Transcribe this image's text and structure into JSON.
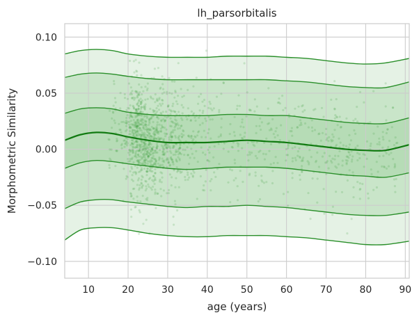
{
  "chart_data": {
    "type": "area",
    "title": "lh_parsorbitalis",
    "xlabel": "age (years)",
    "ylabel": "Morphometric Similarity",
    "xlim": [
      4,
      91
    ],
    "ylim": [
      -0.115,
      0.112
    ],
    "x_ticks": [
      10,
      20,
      30,
      40,
      50,
      60,
      70,
      80,
      90
    ],
    "x_tick_labels": [
      "10",
      "20",
      "30",
      "40",
      "50",
      "60",
      "70",
      "80",
      "90"
    ],
    "y_ticks": [
      0.1,
      0.05,
      0.0,
      -0.05,
      -0.1
    ],
    "y_tick_labels": [
      "0.10",
      "0.05",
      "0.00",
      "−0.05",
      "−0.10"
    ],
    "grid": true,
    "x": [
      4,
      8,
      12,
      16,
      20,
      25,
      30,
      35,
      40,
      45,
      50,
      55,
      60,
      65,
      70,
      75,
      80,
      85,
      91
    ],
    "series": [
      {
        "values": [
          0.085,
          0.088,
          0.089,
          0.088,
          0.085,
          0.083,
          0.082,
          0.082,
          0.082,
          0.083,
          0.083,
          0.083,
          0.082,
          0.081,
          0.079,
          0.077,
          0.076,
          0.077,
          0.081
        ]
      },
      {
        "values": [
          0.064,
          0.067,
          0.068,
          0.067,
          0.065,
          0.063,
          0.062,
          0.062,
          0.062,
          0.062,
          0.062,
          0.062,
          0.061,
          0.06,
          0.058,
          0.056,
          0.055,
          0.055,
          0.06
        ]
      },
      {
        "values": [
          0.032,
          0.036,
          0.037,
          0.036,
          0.033,
          0.031,
          0.03,
          0.03,
          0.03,
          0.031,
          0.031,
          0.03,
          0.03,
          0.028,
          0.026,
          0.024,
          0.023,
          0.023,
          0.028
        ]
      },
      {
        "values": [
          0.008,
          0.013,
          0.015,
          0.014,
          0.011,
          0.008,
          0.006,
          0.006,
          0.006,
          0.007,
          0.008,
          0.007,
          0.006,
          0.004,
          0.002,
          0.0,
          -0.001,
          -0.001,
          0.004
        ]
      },
      {
        "values": [
          -0.017,
          -0.012,
          -0.01,
          -0.011,
          -0.013,
          -0.015,
          -0.017,
          -0.018,
          -0.017,
          -0.016,
          -0.016,
          -0.016,
          -0.017,
          -0.019,
          -0.021,
          -0.023,
          -0.024,
          -0.025,
          -0.021
        ]
      },
      {
        "values": [
          -0.053,
          -0.047,
          -0.045,
          -0.045,
          -0.047,
          -0.049,
          -0.051,
          -0.052,
          -0.051,
          -0.051,
          -0.05,
          -0.051,
          -0.052,
          -0.054,
          -0.056,
          -0.058,
          -0.059,
          -0.059,
          -0.056
        ]
      },
      {
        "values": [
          -0.081,
          -0.072,
          -0.07,
          -0.07,
          -0.072,
          -0.075,
          -0.077,
          -0.078,
          -0.078,
          -0.077,
          -0.077,
          -0.077,
          -0.078,
          -0.079,
          -0.081,
          -0.083,
          -0.085,
          -0.085,
          -0.082
        ]
      }
    ],
    "bands": [
      {
        "lower_series": 0,
        "upper_series": 6,
        "color": "#e5f2e5"
      },
      {
        "lower_series": 1,
        "upper_series": 5,
        "color": "#c9e5c9"
      },
      {
        "lower_series": 2,
        "upper_series": 4,
        "color": "#b6dcb6"
      }
    ],
    "scatter_points": {
      "count": 1500,
      "x_range": [
        15,
        88
      ],
      "color": "#3a9a3a",
      "opacity": 0.18
    },
    "colors": {
      "line": "#2a8f2a",
      "median_line": "#117a11",
      "grid": "#cccccc",
      "axes": "#cccccc"
    }
  }
}
